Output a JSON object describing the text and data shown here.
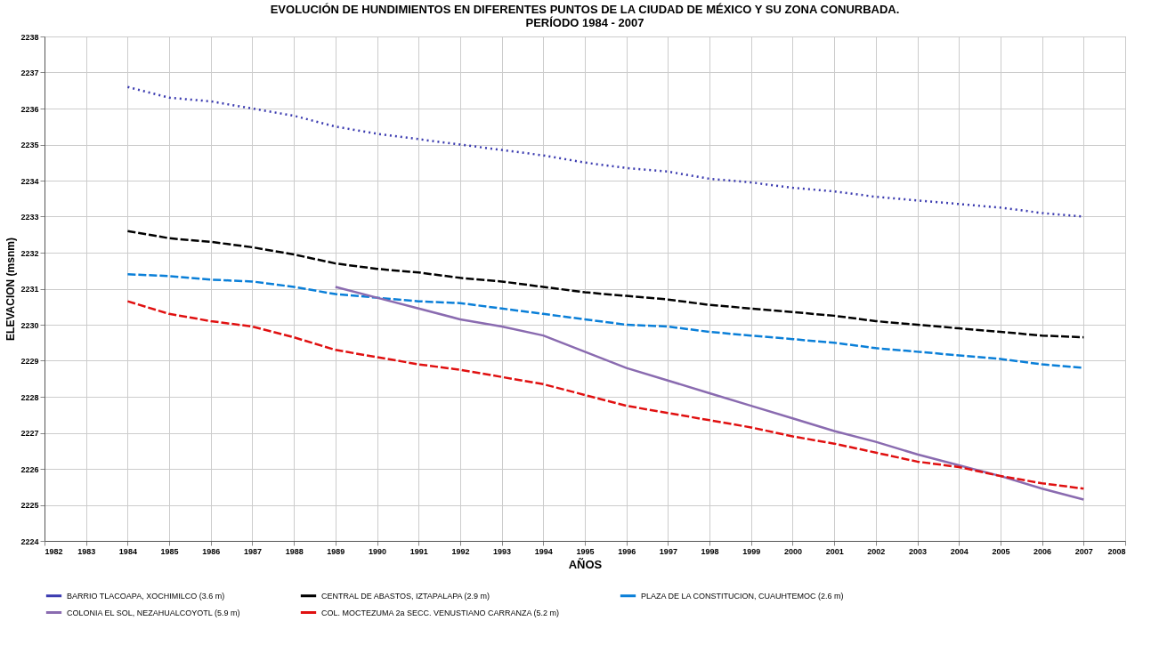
{
  "chart_data": {
    "type": "line",
    "title": [
      "EVOLUCIÓN  DE HUNDIMIENTOS  EN DIFERENTES  PUNTOS DE LA CIUDAD DE MÉXICO Y SU ZONA CONURBADA.",
      "PERÍODO 1984 - 2007"
    ],
    "xlabel": "AÑOS",
    "ylabel": "ELEVACION (msnm)",
    "xlim": [
      1982,
      2008
    ],
    "xticks": [
      1982,
      1983,
      1984,
      1985,
      1986,
      1987,
      1988,
      1989,
      1990,
      1991,
      1992,
      1993,
      1994,
      1995,
      1996,
      1997,
      1998,
      1999,
      2000,
      2001,
      2002,
      2003,
      2004,
      2005,
      2006,
      2007,
      2008
    ],
    "ylim": [
      2224,
      2238
    ],
    "yticks": [
      2224,
      2225,
      2226,
      2227,
      2228,
      2229,
      2230,
      2231,
      2232,
      2233,
      2234,
      2235,
      2236,
      2237,
      2238
    ],
    "grid": true,
    "legend": "bottom",
    "marker": "none",
    "x": [
      1984,
      1985,
      1986,
      1987,
      1988,
      1989,
      1990,
      1991,
      1992,
      1993,
      1994,
      1995,
      1996,
      1997,
      1998,
      1999,
      2000,
      2001,
      2002,
      2003,
      2004,
      2005,
      2006,
      2007
    ],
    "series": [
      {
        "name": "BARRIO TLACOAPA, XOCHIMILCO (3.6 m)",
        "color": "#3b3bb0",
        "line_style": "dotted",
        "values": [
          2236.6,
          2236.3,
          2236.2,
          2236.0,
          2235.8,
          2235.5,
          2235.3,
          2235.15,
          2235.0,
          2234.85,
          2234.7,
          2234.5,
          2234.35,
          2234.25,
          2234.05,
          2233.95,
          2233.8,
          2233.7,
          2233.55,
          2233.45,
          2233.35,
          2233.25,
          2233.1,
          2233.0
        ]
      },
      {
        "name": "CENTRAL DE ABASTOS, IZTAPALAPA (2.9 m)",
        "color": "#000000",
        "line_style": "dashed",
        "values": [
          2232.6,
          2232.4,
          2232.3,
          2232.15,
          2231.95,
          2231.7,
          2231.55,
          2231.45,
          2231.3,
          2231.2,
          2231.05,
          2230.9,
          2230.8,
          2230.7,
          2230.55,
          2230.45,
          2230.35,
          2230.25,
          2230.1,
          2230.0,
          2229.9,
          2229.8,
          2229.7,
          2229.65
        ]
      },
      {
        "name": "PLAZA DE LA CONSTITUCION, CUAUHTEMOC (2.6 m)",
        "color": "#0a7fd8",
        "line_style": "dashed",
        "values": [
          2231.4,
          2231.35,
          2231.25,
          2231.2,
          2231.05,
          2230.85,
          2230.75,
          2230.65,
          2230.6,
          2230.45,
          2230.3,
          2230.15,
          2230.0,
          2229.95,
          2229.8,
          2229.7,
          2229.6,
          2229.5,
          2229.35,
          2229.25,
          2229.15,
          2229.05,
          2228.9,
          2228.8
        ]
      },
      {
        "name": "COLONIA EL SOL, NEZAHUALCOYOTL (5.9 m)",
        "color": "#8a6bb0",
        "line_style": "solid",
        "values": [
          null,
          null,
          null,
          null,
          null,
          2231.05,
          2230.75,
          2230.45,
          2230.15,
          2229.95,
          2229.7,
          2229.25,
          2228.8,
          2228.45,
          2228.1,
          2227.75,
          2227.4,
          2227.05,
          2226.75,
          2226.4,
          2226.1,
          2225.8,
          2225.45,
          2225.15
        ]
      },
      {
        "name": "COL. MOCTEZUMA 2a SECC. VENUSTIANO CARRANZA (5.2 m)",
        "color": "#e01010",
        "line_style": "dashed",
        "values": [
          2230.65,
          2230.3,
          2230.1,
          2229.95,
          2229.65,
          2229.3,
          2229.1,
          2228.9,
          2228.75,
          2228.55,
          2228.35,
          2228.05,
          2227.75,
          2227.55,
          2227.35,
          2227.15,
          2226.9,
          2226.7,
          2226.45,
          2226.2,
          2226.05,
          2225.8,
          2225.6,
          2225.45
        ]
      }
    ]
  }
}
